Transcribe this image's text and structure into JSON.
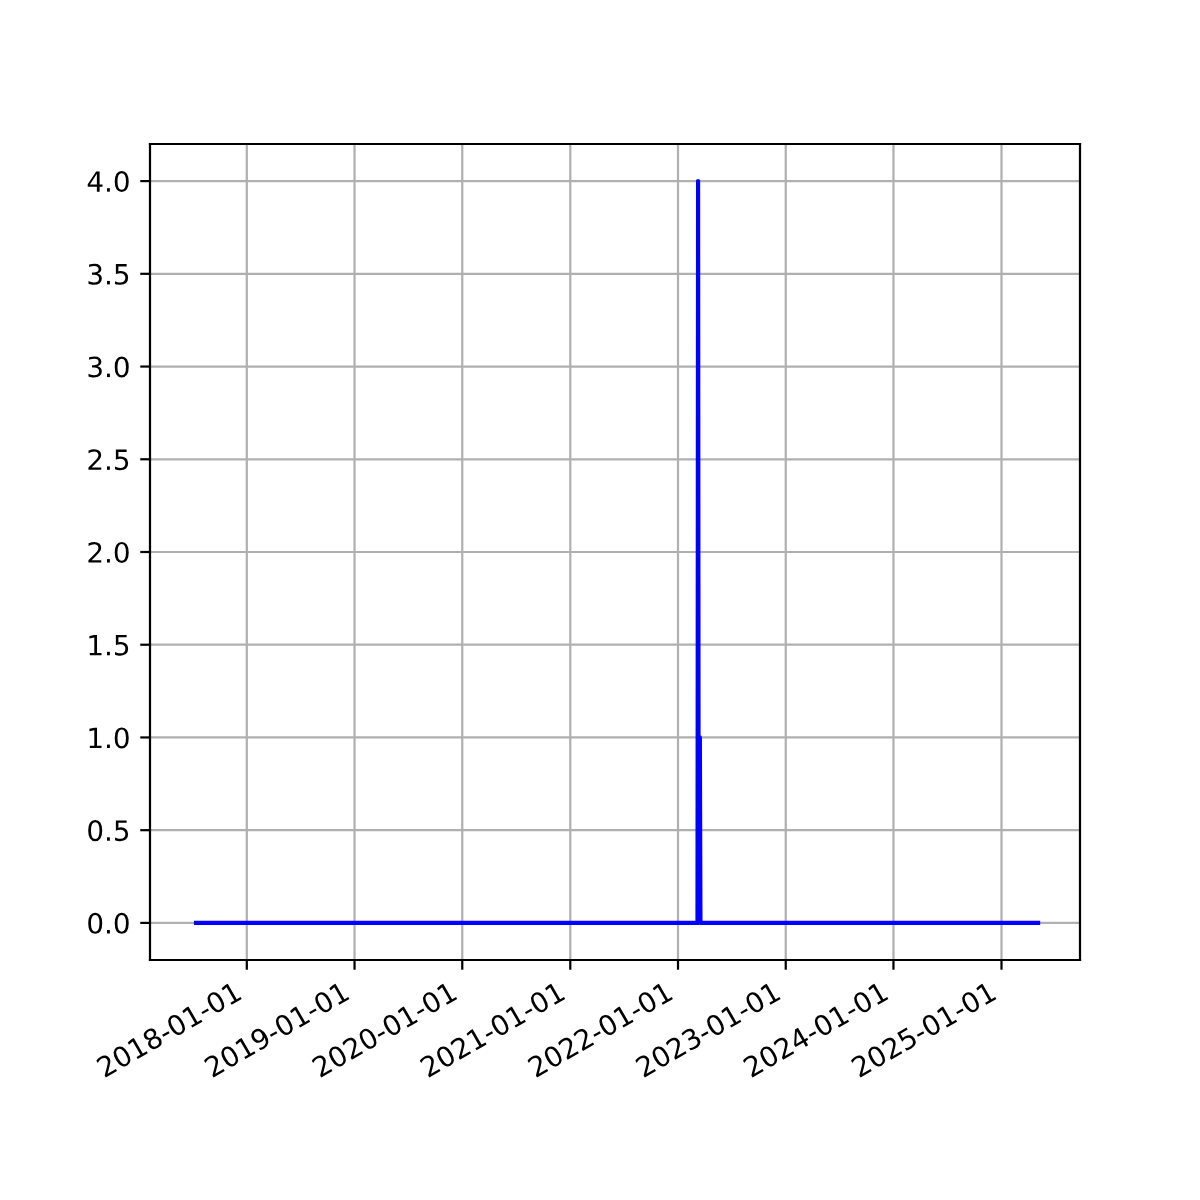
{
  "chart_data": {
    "type": "line",
    "series": [
      {
        "color": "#0000ff",
        "x": [
          "2017-07-13",
          "2022-03-08",
          "2022-03-10",
          "2022-03-12",
          "2022-03-16",
          "2022-03-18",
          "2025-05-05"
        ],
        "values": [
          0,
          0,
          4,
          0,
          1,
          0,
          0
        ]
      }
    ],
    "xlim": [
      "2017-02-07",
      "2025-09-24"
    ],
    "xticks": [
      "2018-01-01",
      "2019-01-01",
      "2020-01-01",
      "2021-01-01",
      "2022-01-01",
      "2023-01-01",
      "2024-01-01",
      "2025-01-01"
    ],
    "ylim": [
      -0.2,
      4.2
    ],
    "yticks": [
      {
        "value": 0,
        "label": "0.0"
      },
      {
        "value": 0.5,
        "label": "0.5"
      },
      {
        "value": 1,
        "label": "1.0"
      },
      {
        "value": 1.5,
        "label": "1.5"
      },
      {
        "value": 2,
        "label": "2.0"
      },
      {
        "value": 2.5,
        "label": "2.5"
      },
      {
        "value": 3,
        "label": "3.0"
      },
      {
        "value": 3.5,
        "label": "3.5"
      },
      {
        "value": 4,
        "label": "4.0"
      }
    ],
    "grid": true
  }
}
